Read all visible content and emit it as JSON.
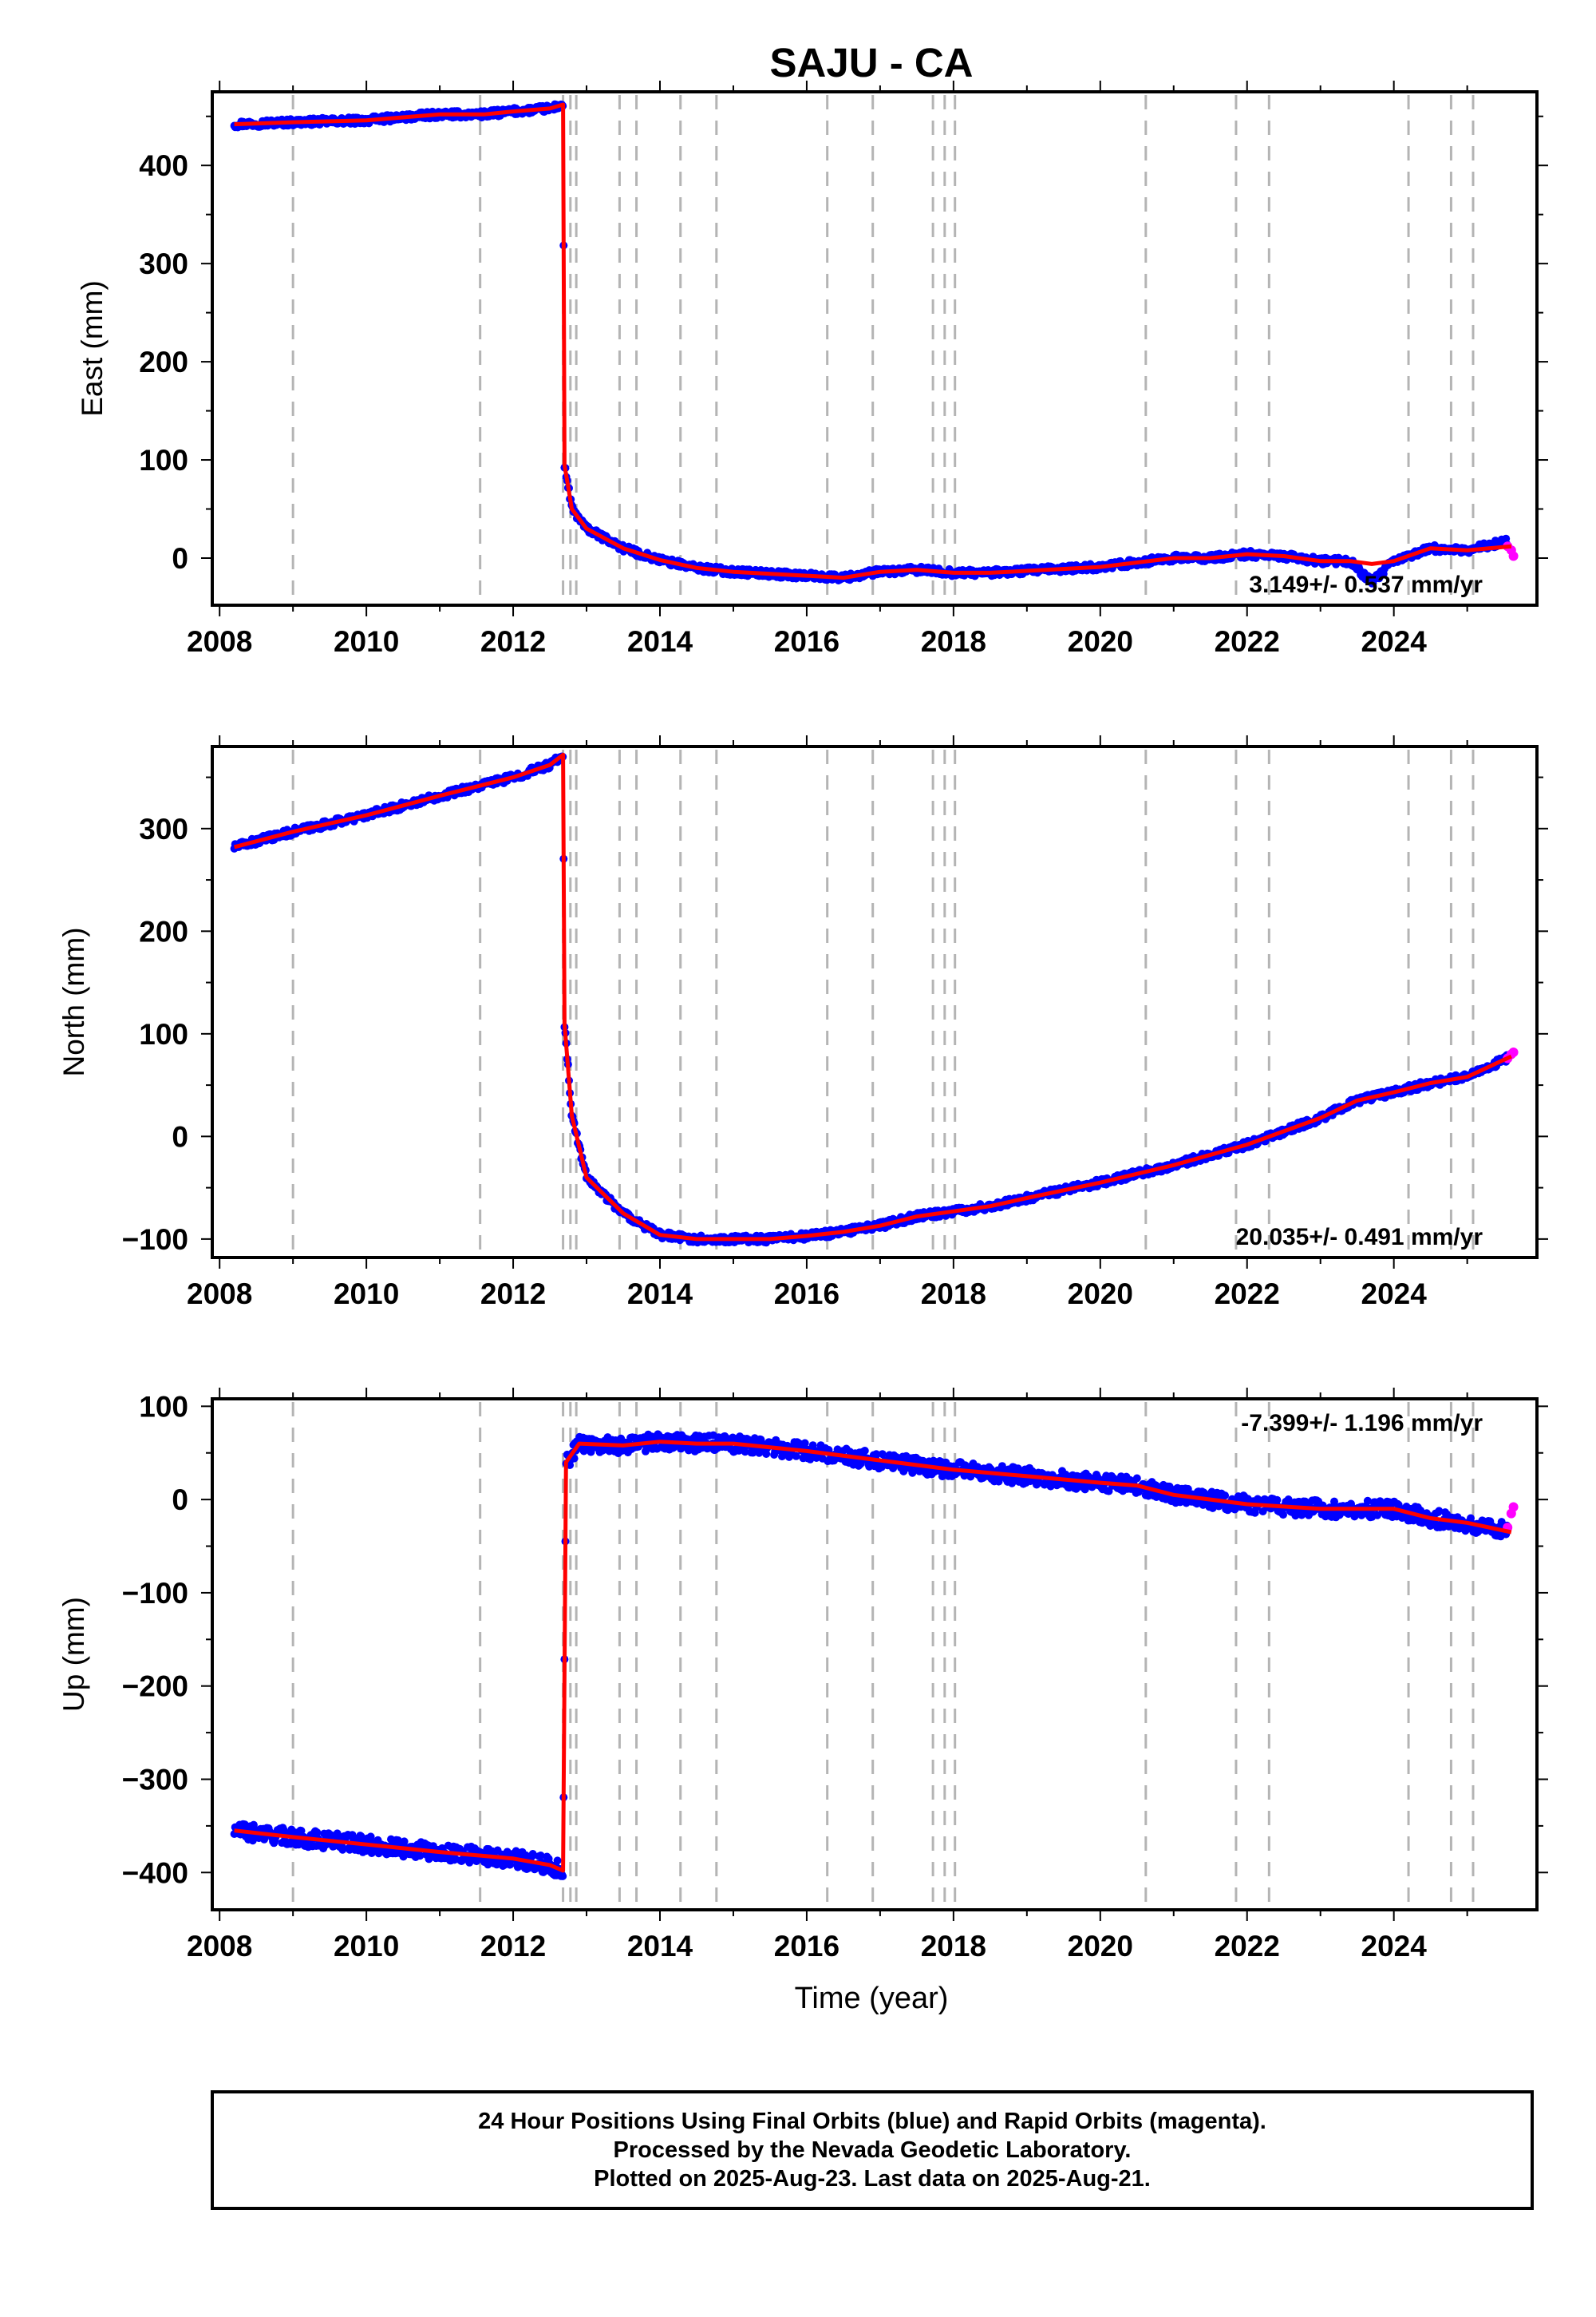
{
  "title": "SAJU - CA",
  "xlabel": "Time (year)",
  "colors": {
    "final_orbits": "#0000ff",
    "rapid_orbits": "#ff00ff",
    "model": "#ff0000",
    "event_lines": "#b4b4b4",
    "frame": "#000000"
  },
  "footer": {
    "line1": "24 Hour Positions Using Final Orbits (blue) and Rapid Orbits (magenta).",
    "line2": "Processed by the Nevada Geodetic Laboratory.",
    "line3": "Plotted on 2025-Aug-23. Last data on 2025-Aug-21."
  },
  "chart_data": [
    {
      "type": "scatter",
      "panel": "east",
      "ylabel": "East (mm)",
      "xlim": [
        2007.9,
        2025.95
      ],
      "ylim": [
        -48,
        475
      ],
      "x_ticks": [
        2008,
        2010,
        2012,
        2014,
        2016,
        2018,
        2020,
        2022,
        2024
      ],
      "y_ticks": [
        0,
        100,
        200,
        300,
        400
      ],
      "rate_label": "3.149+/- 0.537 mm/yr",
      "rate_position": "bottom-right",
      "grid": false,
      "series": [
        {
          "kind": "final_orbits",
          "x": [
            2008.2,
            2009.0,
            2010.0,
            2011.0,
            2011.6,
            2012.0,
            2012.5,
            2012.68,
            2012.7,
            2012.8,
            2013.0,
            2013.5,
            2014.0,
            2014.5,
            2015.0,
            2016.0,
            2016.5,
            2017.0,
            2017.5,
            2018.0,
            2018.5,
            2019.0,
            2020.0,
            2021.0,
            2021.5,
            2022.0,
            2022.5,
            2023.0,
            2023.4,
            2023.7,
            2024.0,
            2024.5,
            2025.0,
            2025.6
          ],
          "y": [
            442,
            444,
            446,
            452,
            452,
            455,
            458,
            462,
            95,
            50,
            30,
            10,
            -2,
            -10,
            -14,
            -18,
            -20,
            -14,
            -12,
            -15,
            -15,
            -13,
            -9,
            0,
            0,
            4,
            2,
            -3,
            -3,
            -25,
            -3,
            10,
            8,
            18
          ]
        },
        {
          "kind": "rapid_orbits",
          "x": [
            2025.55,
            2025.6,
            2025.63
          ],
          "y": [
            12,
            8,
            2
          ]
        },
        {
          "kind": "model",
          "x": [
            2008.2,
            2009.0,
            2010.0,
            2011.0,
            2011.6,
            2012.0,
            2012.5,
            2012.68,
            2012.7,
            2012.8,
            2013.0,
            2013.5,
            2014.0,
            2014.5,
            2015.0,
            2016.0,
            2016.5,
            2017.0,
            2017.5,
            2018.0,
            2018.5,
            2019.0,
            2020.0,
            2021.0,
            2021.5,
            2022.0,
            2022.5,
            2023.0,
            2023.4,
            2023.7,
            2024.0,
            2024.5,
            2025.0,
            2025.6
          ],
          "y": [
            442,
            444,
            446,
            452,
            452,
            455,
            458,
            462,
            95,
            50,
            30,
            10,
            -2,
            -10,
            -14,
            -18,
            -20,
            -14,
            -12,
            -15,
            -15,
            -13,
            -9,
            0,
            0,
            4,
            2,
            -3,
            -3,
            -6,
            -3,
            10,
            8,
            12
          ]
        }
      ]
    },
    {
      "type": "scatter",
      "panel": "north",
      "ylabel": "North (mm)",
      "xlim": [
        2007.9,
        2025.95
      ],
      "ylim": [
        -118,
        380
      ],
      "x_ticks": [
        2008,
        2010,
        2012,
        2014,
        2016,
        2018,
        2020,
        2022,
        2024
      ],
      "y_ticks": [
        -100,
        0,
        100,
        200,
        300
      ],
      "rate_label": "20.035+/- 0.491 mm/yr",
      "rate_position": "bottom-right",
      "grid": false,
      "series": [
        {
          "kind": "final_orbits",
          "x": [
            2008.2,
            2009.0,
            2010.0,
            2011.0,
            2012.0,
            2012.5,
            2012.68,
            2012.7,
            2012.8,
            2013.0,
            2013.5,
            2014.0,
            2014.5,
            2015.0,
            2015.5,
            2016.0,
            2016.5,
            2017.0,
            2017.5,
            2018.0,
            2018.5,
            2019.0,
            2020.0,
            2021.0,
            2022.0,
            2023.0,
            2023.5,
            2024.0,
            2024.5,
            2025.0,
            2025.6
          ],
          "y": [
            282,
            297,
            313,
            332,
            350,
            362,
            372,
            110,
            20,
            -40,
            -75,
            -96,
            -100,
            -100,
            -100,
            -97,
            -93,
            -87,
            -78,
            -73,
            -68,
            -60,
            -45,
            -28,
            -8,
            18,
            35,
            43,
            52,
            58,
            78
          ]
        },
        {
          "kind": "rapid_orbits",
          "x": [
            2025.55,
            2025.6,
            2025.63
          ],
          "y": [
            76,
            80,
            82
          ]
        },
        {
          "kind": "model",
          "x": [
            2008.2,
            2009.0,
            2010.0,
            2011.0,
            2012.0,
            2012.5,
            2012.68,
            2012.7,
            2012.8,
            2013.0,
            2013.5,
            2014.0,
            2014.5,
            2015.0,
            2015.5,
            2016.0,
            2016.5,
            2017.0,
            2017.5,
            2018.0,
            2018.5,
            2019.0,
            2020.0,
            2021.0,
            2022.0,
            2023.0,
            2023.5,
            2024.0,
            2024.5,
            2025.0,
            2025.6
          ],
          "y": [
            282,
            297,
            313,
            332,
            350,
            362,
            372,
            110,
            20,
            -40,
            -75,
            -96,
            -100,
            -100,
            -100,
            -97,
            -93,
            -87,
            -78,
            -73,
            -68,
            -60,
            -45,
            -28,
            -8,
            18,
            35,
            43,
            52,
            58,
            78
          ]
        }
      ]
    },
    {
      "type": "scatter",
      "panel": "up",
      "ylabel": "Up (mm)",
      "xlim": [
        2007.9,
        2025.95
      ],
      "ylim": [
        -440,
        108
      ],
      "x_ticks": [
        2008,
        2010,
        2012,
        2014,
        2016,
        2018,
        2020,
        2022,
        2024
      ],
      "y_ticks": [
        -400,
        -300,
        -200,
        -100,
        0,
        100
      ],
      "rate_label": "-7.399+/- 1.196 mm/yr",
      "rate_position": "top-right",
      "grid": false,
      "series": [
        {
          "kind": "final_orbits",
          "x": [
            2008.2,
            2009.0,
            2010.0,
            2011.0,
            2012.0,
            2012.5,
            2012.68,
            2012.72,
            2012.9,
            2013.5,
            2014.0,
            2014.5,
            2015.0,
            2016.0,
            2017.0,
            2018.0,
            2019.0,
            2020.0,
            2020.5,
            2021.0,
            2022.0,
            2023.0,
            2024.0,
            2024.5,
            2025.0,
            2025.6
          ],
          "y": [
            -355,
            -362,
            -370,
            -378,
            -385,
            -392,
            -398,
            40,
            60,
            58,
            62,
            60,
            60,
            52,
            42,
            32,
            25,
            18,
            15,
            5,
            -5,
            -10,
            -10,
            -20,
            -25,
            -35
          ]
        },
        {
          "kind": "rapid_orbits",
          "x": [
            2025.55,
            2025.6,
            2025.63
          ],
          "y": [
            -30,
            -15,
            -8
          ]
        },
        {
          "kind": "model",
          "x": [
            2008.2,
            2009.0,
            2010.0,
            2011.0,
            2012.0,
            2012.5,
            2012.68,
            2012.72,
            2012.9,
            2013.5,
            2014.0,
            2014.5,
            2015.0,
            2016.0,
            2017.0,
            2018.0,
            2019.0,
            2020.0,
            2020.5,
            2021.0,
            2022.0,
            2023.0,
            2024.0,
            2024.5,
            2025.0,
            2025.6
          ],
          "y": [
            -355,
            -362,
            -370,
            -378,
            -385,
            -392,
            -398,
            40,
            60,
            58,
            62,
            60,
            60,
            52,
            42,
            32,
            25,
            18,
            15,
            5,
            -5,
            -10,
            -10,
            -20,
            -25,
            -35
          ]
        }
      ]
    }
  ],
  "event_lines_years": [
    2009.0,
    2011.55,
    2012.68,
    2012.78,
    2012.86,
    2013.45,
    2013.68,
    2014.28,
    2014.77,
    2016.28,
    2016.9,
    2017.72,
    2017.88,
    2018.02,
    2020.62,
    2021.85,
    2022.3,
    2024.2,
    2024.78,
    2025.08
  ]
}
